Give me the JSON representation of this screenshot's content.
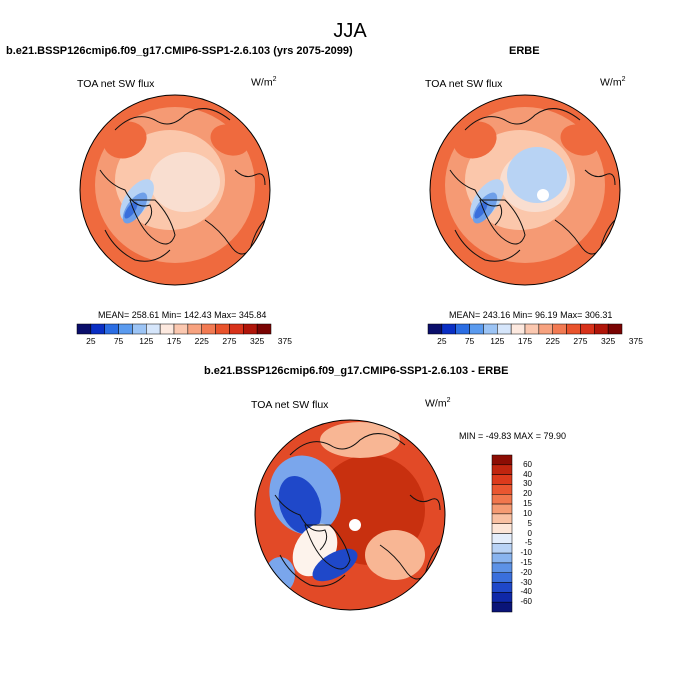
{
  "page": {
    "title": "JJA"
  },
  "panels": [
    {
      "title": "b.e21.BSSP126cmip6.f09_g17.CMIP6-SSP1-2.6.103 (yrs 2075-2099)",
      "variable": "TOA net SW flux",
      "units": "W/m",
      "units_exp": "2",
      "stats": "MEAN= 258.61  Min= 142.43  Max= 345.84"
    },
    {
      "title": "ERBE",
      "variable": "TOA net SW flux",
      "units": "W/m",
      "units_exp": "2",
      "stats": "MEAN= 243.16  Min=  96.19  Max= 306.31"
    },
    {
      "title": "b.e21.BSSP126cmip6.f09_g17.CMIP6-SSP1-2.6.103 - ERBE",
      "variable": "TOA net SW flux",
      "units": "W/m",
      "units_exp": "2",
      "stats": "MIN = -49.83 MAX =  79.90"
    }
  ],
  "colorbar_abs": {
    "labels": [
      "25",
      "75",
      "125",
      "175",
      "225",
      "275",
      "325",
      "375"
    ],
    "colors": [
      "#0a0e6b",
      "#0a2fc4",
      "#2b6de3",
      "#5b9bef",
      "#9cc4f5",
      "#d6e6fb",
      "#fde9df",
      "#fbc8b0",
      "#f7a27f",
      "#f27a52",
      "#e9532c",
      "#d8321a",
      "#b01509",
      "#7a0403"
    ]
  },
  "colorbar_diff": {
    "labels": [
      "60",
      "40",
      "30",
      "20",
      "15",
      "10",
      "5",
      "0",
      "-5",
      "-10",
      "-15",
      "-20",
      "-30",
      "-40",
      "-60"
    ],
    "colors": [
      "#8c0d04",
      "#c0250f",
      "#dc3a1c",
      "#ea5630",
      "#f1774d",
      "#f59b73",
      "#f9c1a3",
      "#fde6d8",
      "#e4eefc",
      "#b9d3f6",
      "#89b4ef",
      "#5d92e6",
      "#3a6fdc",
      "#1f48c9",
      "#0f28a8",
      "#0a1478"
    ]
  },
  "map_colors": {
    "abs": {
      "rim": "#ef6a3e",
      "mid": "#f59a74",
      "inner": "#fbc7ab",
      "ice": "#f9ded0",
      "cool": "#b8d3f4",
      "blue": "#6e9fe9",
      "deep": "#3a6fdc"
    },
    "diff": {
      "warm": "#e24a27",
      "hot": "#c8300f",
      "pale": "#f8b694",
      "white": "#fdf3ec",
      "blue": "#7aa6ec",
      "dblue": "#1f48c9"
    }
  }
}
